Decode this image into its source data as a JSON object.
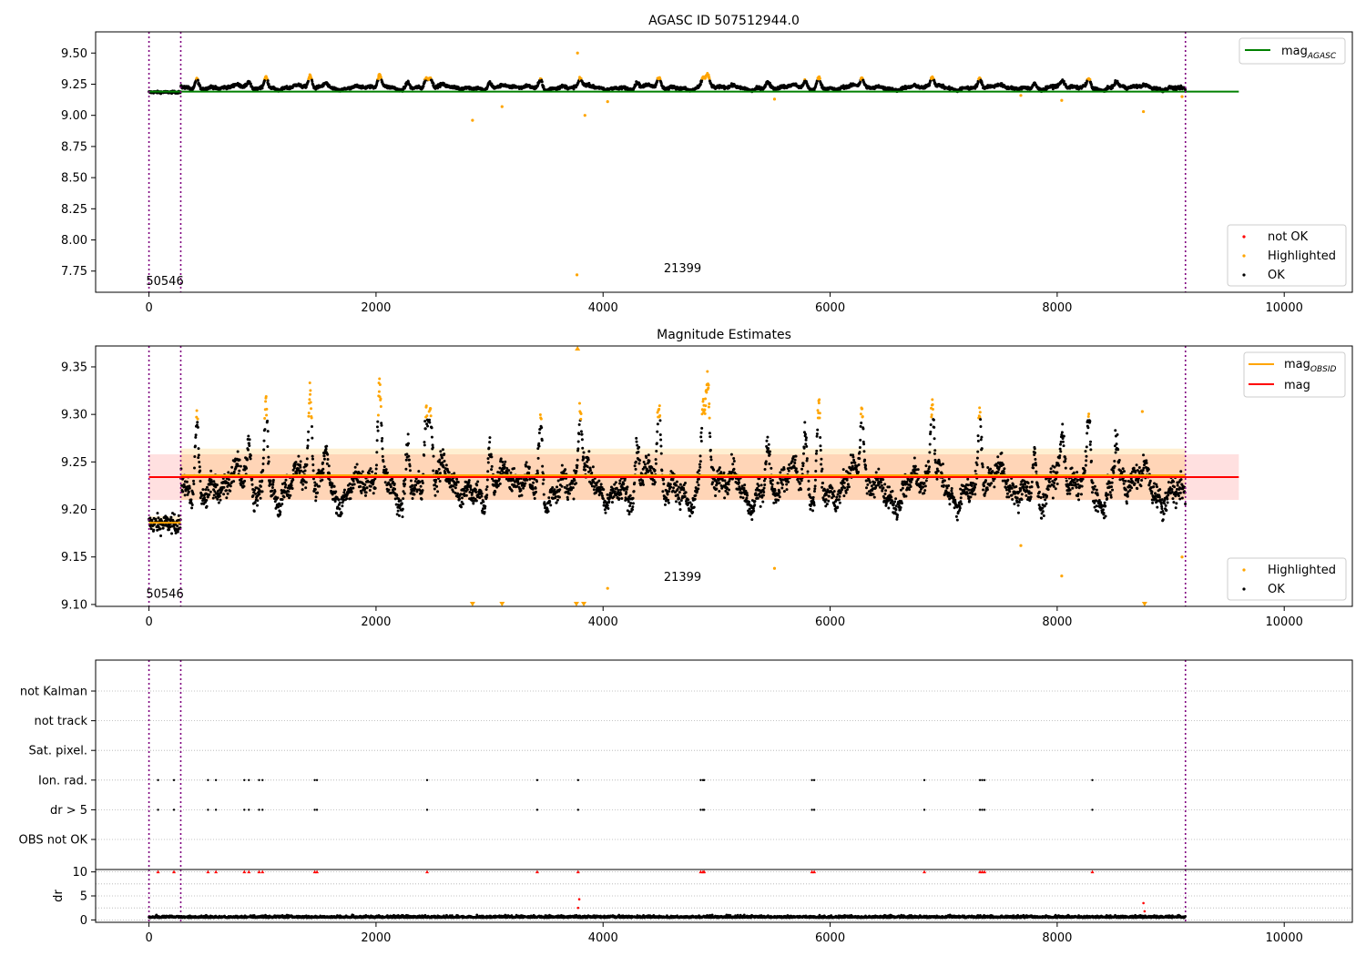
{
  "chart_data": [
    {
      "type": "scatter",
      "title": "AGASC ID 507512944.0",
      "xlim": [
        -470,
        10600
      ],
      "ylim": [
        7.58,
        9.67
      ],
      "xticks": [
        "0",
        "2000",
        "4000",
        "6000",
        "8000",
        "10000"
      ],
      "xtick_values": [
        0,
        2000,
        4000,
        6000,
        8000,
        10000
      ],
      "yticks": [
        "7.75",
        "8.00",
        "8.25",
        "8.50",
        "8.75",
        "9.00",
        "9.25",
        "9.50"
      ],
      "ytick_values": [
        7.75,
        8.0,
        8.25,
        8.5,
        8.75,
        9.0,
        9.25,
        9.5
      ],
      "vlines": [
        0,
        280,
        9130
      ],
      "obsid_labels": [
        {
          "text": "50546",
          "x": 140,
          "y": 7.64
        },
        {
          "text": "21399",
          "x": 4700,
          "y": 7.74
        }
      ],
      "series": [
        {
          "name": "mag_AGASC",
          "kind": "hline",
          "y": 9.19,
          "x": [
            0,
            9600
          ],
          "color": "#008000"
        }
      ],
      "legend_line": {
        "label": "mag",
        "sub": "AGASC",
        "position": "top-right"
      },
      "legend_points": {
        "position": "bottom-right",
        "entries": [
          {
            "label": "not OK",
            "color": "#ff0000"
          },
          {
            "label": "Highlighted",
            "color": "#ffa500"
          },
          {
            "label": "OK",
            "color": "#000000"
          }
        ]
      },
      "highlighted_outliers": [
        {
          "x": 2850,
          "y": 8.96
        },
        {
          "x": 3110,
          "y": 9.07
        },
        {
          "x": 3770,
          "y": 7.72
        },
        {
          "x": 3775,
          "y": 9.5
        },
        {
          "x": 3840,
          "y": 9.0
        },
        {
          "x": 4040,
          "y": 9.11
        },
        {
          "x": 5510,
          "y": 9.13
        },
        {
          "x": 7680,
          "y": 9.16
        },
        {
          "x": 8040,
          "y": 9.12
        },
        {
          "x": 8760,
          "y": 9.03
        },
        {
          "x": 9100,
          "y": 9.15
        }
      ]
    },
    {
      "type": "scatter",
      "title": "Magnitude Estimates",
      "xlim": [
        -470,
        10600
      ],
      "ylim": [
        9.098,
        9.372
      ],
      "xticks": [
        "0",
        "2000",
        "4000",
        "6000",
        "8000",
        "10000"
      ],
      "xtick_values": [
        0,
        2000,
        4000,
        6000,
        8000,
        10000
      ],
      "yticks": [
        "9.10",
        "9.15",
        "9.20",
        "9.25",
        "9.30",
        "9.35"
      ],
      "ytick_values": [
        9.1,
        9.15,
        9.2,
        9.25,
        9.3,
        9.35
      ],
      "vlines": [
        0,
        280,
        9130
      ],
      "obsid_labels": [
        {
          "text": "50546",
          "x": 140,
          "y": 9.107
        },
        {
          "text": "21399",
          "x": 4700,
          "y": 9.125
        }
      ],
      "series": [
        {
          "name": "mag",
          "kind": "hline",
          "y": 9.234,
          "x": [
            0,
            9600
          ],
          "color": "#ff0000",
          "band": [
            9.21,
            9.258
          ]
        },
        {
          "name": "mag_OBSID",
          "kind": "segments",
          "color": "#ffa500",
          "segments": [
            {
              "x": [
                0,
                280
              ],
              "y": 9.186,
              "band": [
                9.18,
                9.193
              ]
            },
            {
              "x": [
                280,
                9130
              ],
              "y": 9.236,
              "band": [
                9.21,
                9.264
              ]
            }
          ]
        }
      ],
      "legend_lines": {
        "position": "top-right",
        "entries": [
          {
            "label": "mag",
            "sub": "OBSID",
            "color": "#ffa500"
          },
          {
            "label": "mag",
            "sub": "",
            "color": "#ff0000"
          }
        ]
      },
      "legend_points": {
        "position": "bottom-right",
        "entries": [
          {
            "label": "Highlighted",
            "color": "#ffa500"
          },
          {
            "label": "OK",
            "color": "#000000"
          }
        ]
      },
      "highlighted_outliers": [
        {
          "x": 5510,
          "y": 9.138
        },
        {
          "x": 7680,
          "y": 9.162
        },
        {
          "x": 8040,
          "y": 9.13
        },
        {
          "x": 9100,
          "y": 9.15
        },
        {
          "x": 4040,
          "y": 9.117
        },
        {
          "x": 8750,
          "y": 9.303
        }
      ],
      "highlighted_clipped_low": [
        2850,
        3110,
        3765,
        3830,
        8770
      ],
      "highlighted_clipped_high": [
        3775
      ]
    },
    {
      "type": "scatter",
      "title": "",
      "xlim": [
        -470,
        10600
      ],
      "ylim": [
        -0.5,
        10.5
      ],
      "xticks": [
        "0",
        "2000",
        "4000",
        "6000",
        "8000",
        "10000"
      ],
      "xtick_values": [
        0,
        2000,
        4000,
        6000,
        8000,
        10000
      ],
      "ylabel": "dr",
      "yticks": [
        "0",
        "5",
        "10"
      ],
      "ytick_values": [
        0,
        5,
        10
      ],
      "vlines": [
        0,
        280,
        9130
      ],
      "flag_rows": [
        "not Kalman",
        "not track",
        "Sat. pixel.",
        "Ion. rad.",
        "dr > 5",
        "OBS not OK"
      ],
      "flag_events_x": [
        80,
        220,
        520,
        590,
        840,
        880,
        970,
        1000,
        1460,
        1480,
        2450,
        3420,
        3780,
        4860,
        4880,
        4890,
        5840,
        5860,
        6830,
        7320,
        7340,
        7360,
        8310
      ],
      "flag_event_rows": [
        "Ion. rad.",
        "dr > 5"
      ],
      "dr_capped_value": 10,
      "dr_outliers": [
        {
          "x": 3780,
          "y": 2.5
        },
        {
          "x": 3790,
          "y": 4.3
        },
        {
          "x": 8760,
          "y": 3.5
        },
        {
          "x": 8770,
          "y": 1.8
        }
      ],
      "dr_base_level": 0.6,
      "colors": {
        "ok": "#000000",
        "capped": "#ff0000"
      }
    }
  ]
}
